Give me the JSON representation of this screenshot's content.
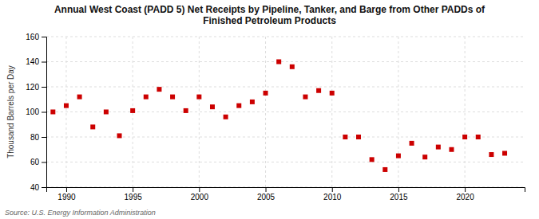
{
  "chart_data": {
    "type": "scatter",
    "title": "Annual West Coast (PADD 5) Net Receipts by Pipeline, Tanker, and Barge from Other PADDs of\nFinished Petroleum Products",
    "y_label": "Thousand Barrels per Day",
    "source": "Source: U.S. Energy Information Administration",
    "x": [
      1989,
      1990,
      1991,
      1992,
      1993,
      1994,
      1995,
      1996,
      1997,
      1998,
      1999,
      2000,
      2001,
      2002,
      2003,
      2004,
      2005,
      2006,
      2007,
      2008,
      2009,
      2010,
      2011,
      2012,
      2013,
      2014,
      2015,
      2016,
      2017,
      2018,
      2019,
      2020,
      2021,
      2022,
      2023
    ],
    "values": [
      100,
      105,
      112,
      88,
      100,
      81,
      101,
      112,
      118,
      112,
      101,
      112,
      104,
      96,
      105,
      108,
      115,
      140,
      136,
      112,
      117,
      115,
      80,
      80,
      62,
      54,
      65,
      75,
      64,
      72,
      70,
      80,
      80,
      66,
      67
    ],
    "color": "#cc0000",
    "marker": "square",
    "xlim": [
      1988.5,
      2024.5
    ],
    "ylim": [
      40,
      160
    ],
    "xticks": [
      1990,
      1995,
      2000,
      2005,
      2010,
      2015,
      2020
    ],
    "yticks": [
      40,
      60,
      80,
      100,
      120,
      140,
      160
    ],
    "grid": true
  }
}
